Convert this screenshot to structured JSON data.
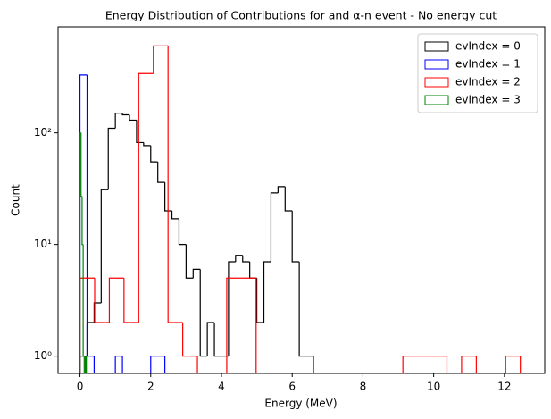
{
  "chart_data": {
    "type": "histogram",
    "title": "Energy Distribution of Contributions for and α-n event - No energy cut",
    "x_label": "Energy (MeV)",
    "y_label": "Count",
    "log_y": true,
    "legend": "upper right",
    "xlim": [
      -0.62,
      13.14
    ],
    "xticks": [
      0,
      2,
      4,
      6,
      8,
      10,
      12
    ],
    "ylim": [
      0.7,
      890
    ],
    "yticks": [
      {
        "value": 1,
        "label": "10⁰"
      },
      {
        "value": 10,
        "label": "10¹"
      },
      {
        "value": 100,
        "label": "10²"
      }
    ],
    "series": [
      {
        "name": "evIndex = 0",
        "color": "#000000",
        "bins": [
          0,
          0.2,
          0.4,
          0.6,
          0.8,
          1,
          1.2,
          1.4,
          1.6,
          1.8,
          2,
          2.2,
          2.4,
          2.6,
          2.8,
          3,
          3.2,
          3.4,
          3.6,
          3.8,
          4,
          4.2,
          4.4,
          4.6,
          4.8,
          5,
          5.2,
          5.4,
          5.6,
          5.8,
          6,
          6.2,
          6.4,
          6.6
        ],
        "values": [
          1,
          2,
          3,
          31,
          110,
          150,
          145,
          130,
          82,
          77,
          55,
          36,
          20,
          17,
          10,
          5,
          6,
          1,
          2,
          1,
          1,
          7,
          8,
          7,
          5,
          2,
          7,
          29,
          33,
          20,
          7,
          1,
          1
        ]
      },
      {
        "name": "evIndex = 1",
        "color": "#0000ff",
        "bins": [
          0,
          0.2,
          0.4,
          0.6,
          0.8,
          1,
          1.2,
          1.4,
          1.6,
          1.8,
          2,
          2.2,
          2.4
        ],
        "values": [
          330,
          1,
          0,
          0,
          0,
          1,
          0,
          0,
          0,
          0,
          1,
          1
        ]
      },
      {
        "name": "evIndex = 2",
        "color": "#ff0000",
        "bins": [
          0,
          0.415,
          0.83,
          1.245,
          1.66,
          2.075,
          2.49,
          2.905,
          3.32,
          3.735,
          4.15,
          4.565,
          4.98,
          5.395,
          5.81,
          6.225,
          6.64,
          7.055,
          7.47,
          7.885,
          8.3,
          8.715,
          9.13,
          9.545,
          9.96,
          10.375,
          10.79,
          11.205,
          11.62,
          12.035,
          12.45
        ],
        "values": [
          5,
          2,
          5,
          2,
          340,
          600,
          2,
          1,
          0,
          0,
          5,
          5,
          0,
          0,
          0,
          0,
          0,
          0,
          0,
          0,
          0,
          0,
          1,
          1,
          1,
          0,
          1,
          0,
          0,
          1
        ]
      },
      {
        "name": "evIndex = 3",
        "color": "#008000",
        "bins": [
          0,
          0.03,
          0.06,
          0.09,
          0.12,
          0.15,
          0.18
        ],
        "values": [
          100,
          27,
          10,
          1,
          0,
          1
        ]
      }
    ]
  }
}
